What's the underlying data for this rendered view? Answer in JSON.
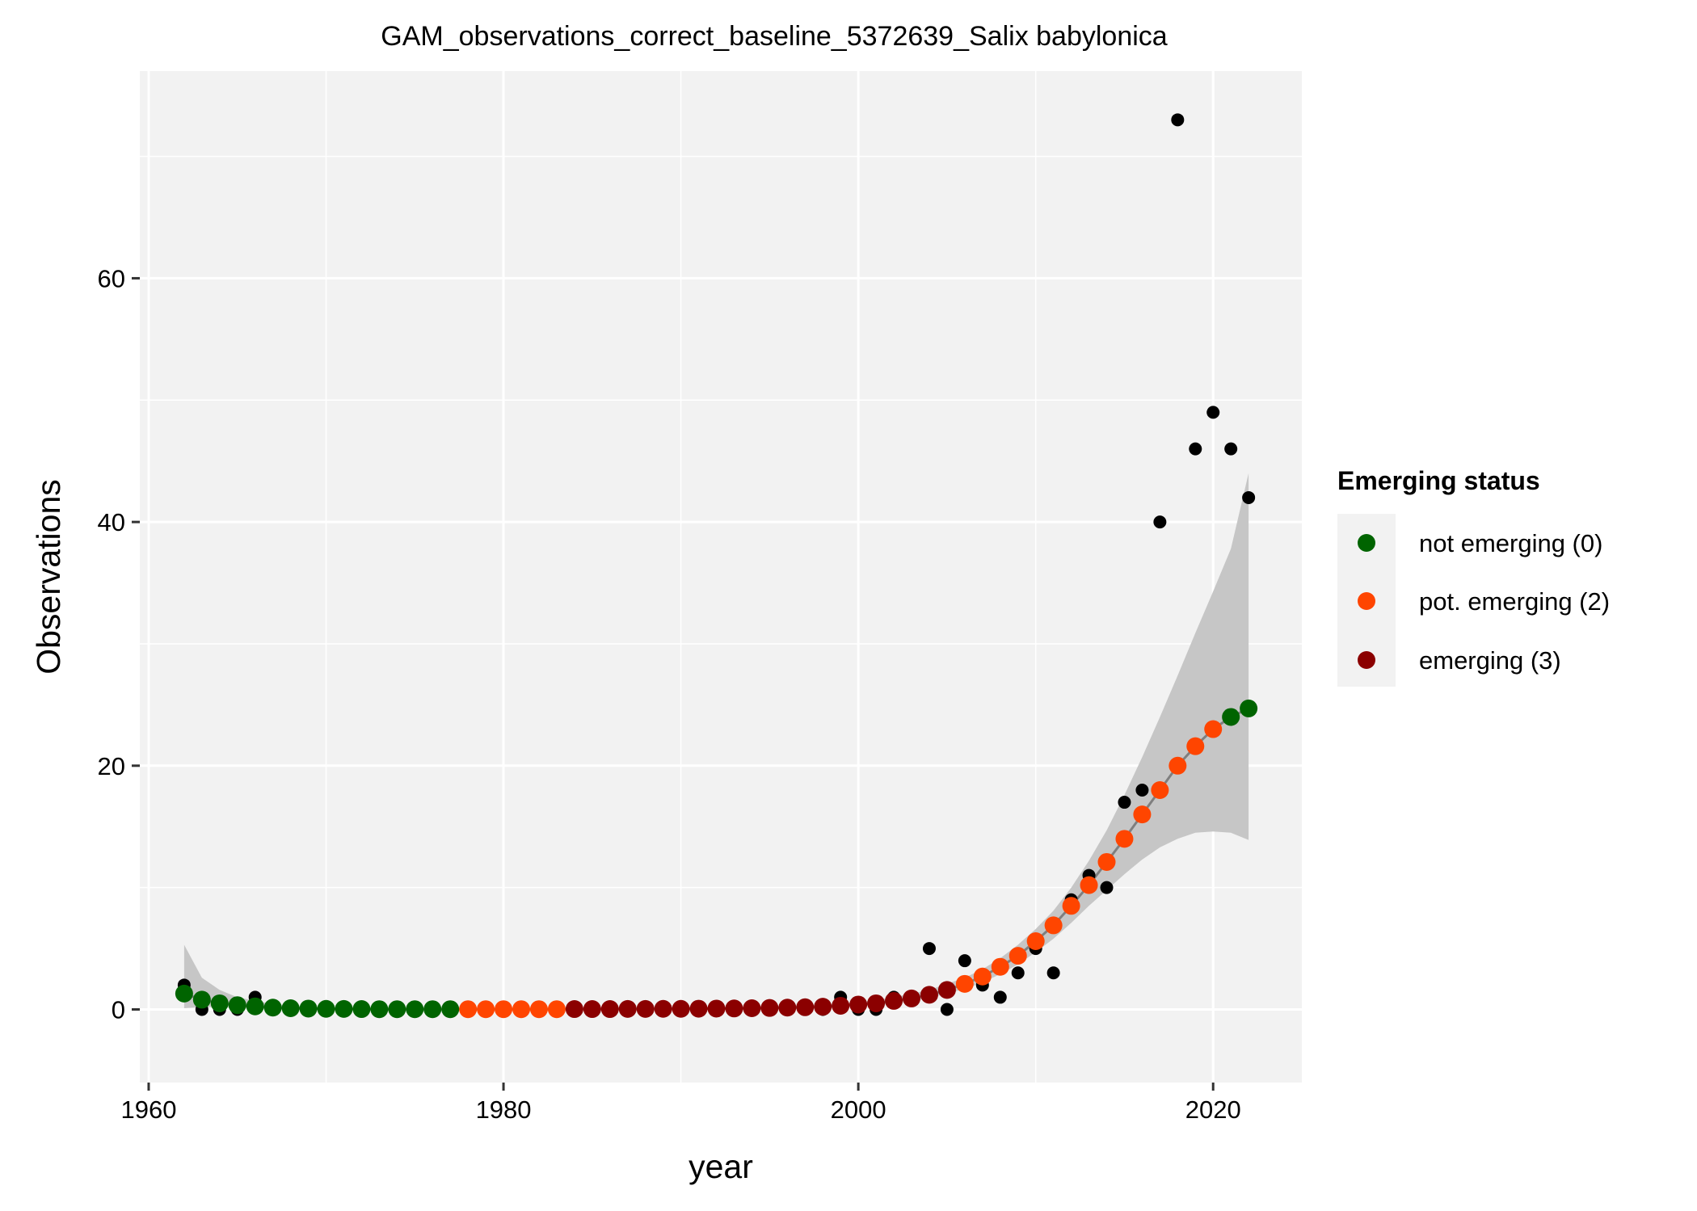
{
  "chart_data": {
    "type": "scatter",
    "title": "GAM_observations_correct_baseline_5372639_Salix babylonica",
    "xlabel": "year",
    "ylabel": "Observations",
    "xlim": [
      1959.5,
      2025
    ],
    "ylim": [
      -6,
      77
    ],
    "x_ticks": [
      1960,
      1980,
      2000,
      2020
    ],
    "y_ticks": [
      0,
      20,
      40,
      60
    ],
    "x_tick_labels": [
      "1960",
      "1980",
      "2000",
      "2020"
    ],
    "y_tick_labels": [
      "0",
      "20",
      "40",
      "60"
    ],
    "grid": true,
    "legend": {
      "title": "Emerging status",
      "position": "right",
      "entries": [
        {
          "key": "0",
          "label": "not emerging (0)",
          "color": "#006400"
        },
        {
          "key": "2",
          "label": "pot. emerging (2)",
          "color": "#FF4500"
        },
        {
          "key": "3",
          "label": "emerging (3)",
          "color": "#8B0000"
        }
      ]
    },
    "observations": {
      "color": "#000000",
      "x": [
        1962,
        1963,
        1964,
        1965,
        1966,
        1967,
        1968,
        1969,
        1970,
        1971,
        1972,
        1973,
        1974,
        1975,
        1976,
        1977,
        1978,
        1979,
        1980,
        1981,
        1982,
        1983,
        1984,
        1985,
        1986,
        1987,
        1988,
        1989,
        1990,
        1991,
        1992,
        1993,
        1994,
        1995,
        1996,
        1997,
        1998,
        1999,
        2000,
        2001,
        2002,
        2003,
        2004,
        2005,
        2006,
        2007,
        2008,
        2009,
        2010,
        2011,
        2012,
        2013,
        2014,
        2015,
        2016,
        2017,
        2018,
        2019,
        2020,
        2021,
        2022
      ],
      "y": [
        2,
        0,
        0,
        0,
        1,
        0,
        0,
        0,
        0,
        0,
        0,
        0,
        0,
        0,
        0,
        0,
        0,
        0,
        0,
        0,
        0,
        0,
        0,
        0,
        0,
        0,
        0,
        0,
        0,
        0,
        0,
        0,
        0,
        0,
        0,
        0,
        0,
        1,
        0,
        0,
        1,
        1,
        5,
        0,
        4,
        2,
        1,
        3,
        5,
        3,
        9,
        11,
        10,
        17,
        18,
        40,
        73,
        46,
        49,
        46,
        42
      ]
    },
    "fit": {
      "line_color": "#7f7f7f",
      "band_color": "#c6c6c6",
      "x": [
        1962,
        1963,
        1964,
        1965,
        1966,
        1967,
        1968,
        1969,
        1970,
        1971,
        1972,
        1973,
        1974,
        1975,
        1976,
        1977,
        1978,
        1979,
        1980,
        1981,
        1982,
        1983,
        1984,
        1985,
        1986,
        1987,
        1988,
        1989,
        1990,
        1991,
        1992,
        1993,
        1994,
        1995,
        1996,
        1997,
        1998,
        1999,
        2000,
        2001,
        2002,
        2003,
        2004,
        2005,
        2006,
        2007,
        2008,
        2009,
        2010,
        2011,
        2012,
        2013,
        2014,
        2015,
        2016,
        2017,
        2018,
        2019,
        2020,
        2021,
        2022
      ],
      "y": [
        1.3,
        0.8,
        0.5,
        0.35,
        0.25,
        0.15,
        0.1,
        0.07,
        0.05,
        0.04,
        0.03,
        0.02,
        0.02,
        0.02,
        0.02,
        0.02,
        0.02,
        0.02,
        0.02,
        0.02,
        0.02,
        0.02,
        0.03,
        0.03,
        0.03,
        0.04,
        0.04,
        0.05,
        0.05,
        0.06,
        0.07,
        0.08,
        0.1,
        0.12,
        0.15,
        0.18,
        0.22,
        0.3,
        0.4,
        0.5,
        0.7,
        0.9,
        1.2,
        1.6,
        2.1,
        2.7,
        3.5,
        4.4,
        5.6,
        6.9,
        8.5,
        10.2,
        12.1,
        14.0,
        16.0,
        18.0,
        20.0,
        21.6,
        23.0,
        24.0,
        24.7
      ],
      "lower": [
        0.1,
        0.2,
        0.2,
        0.15,
        0.1,
        0.05,
        0.03,
        0.02,
        0.01,
        0.01,
        0.01,
        0.01,
        0.01,
        0.01,
        0.01,
        0.01,
        0.01,
        0.01,
        0.01,
        0.01,
        0.01,
        0.01,
        0.01,
        0.01,
        0.01,
        0.02,
        0.02,
        0.02,
        0.02,
        0.03,
        0.03,
        0.04,
        0.05,
        0.06,
        0.08,
        0.1,
        0.13,
        0.2,
        0.28,
        0.36,
        0.5,
        0.7,
        0.95,
        1.3,
        1.7,
        2.2,
        2.9,
        3.7,
        4.7,
        5.8,
        7.1,
        8.5,
        9.8,
        11.1,
        12.3,
        13.3,
        14.0,
        14.5,
        14.6,
        14.5,
        13.9
      ],
      "upper": [
        5.3,
        2.6,
        1.6,
        1.0,
        0.7,
        0.45,
        0.3,
        0.2,
        0.15,
        0.12,
        0.1,
        0.08,
        0.07,
        0.07,
        0.07,
        0.07,
        0.07,
        0.07,
        0.07,
        0.07,
        0.07,
        0.07,
        0.08,
        0.08,
        0.09,
        0.09,
        0.1,
        0.11,
        0.12,
        0.13,
        0.15,
        0.17,
        0.2,
        0.23,
        0.27,
        0.32,
        0.38,
        0.45,
        0.6,
        0.75,
        1.0,
        1.3,
        1.6,
        2.1,
        2.6,
        3.3,
        4.2,
        5.3,
        6.6,
        8.1,
        10.0,
        12.2,
        14.7,
        17.6,
        20.7,
        24.0,
        27.4,
        30.9,
        34.3,
        37.8,
        44.0
      ]
    },
    "status": [
      0,
      0,
      0,
      0,
      0,
      0,
      0,
      0,
      0,
      0,
      0,
      0,
      0,
      0,
      0,
      0,
      2,
      2,
      2,
      2,
      2,
      2,
      3,
      3,
      3,
      3,
      3,
      3,
      3,
      3,
      3,
      3,
      3,
      3,
      3,
      3,
      3,
      3,
      3,
      3,
      3,
      3,
      3,
      3,
      2,
      2,
      2,
      2,
      2,
      2,
      2,
      2,
      2,
      2,
      2,
      2,
      2,
      2,
      2,
      0,
      0
    ]
  }
}
